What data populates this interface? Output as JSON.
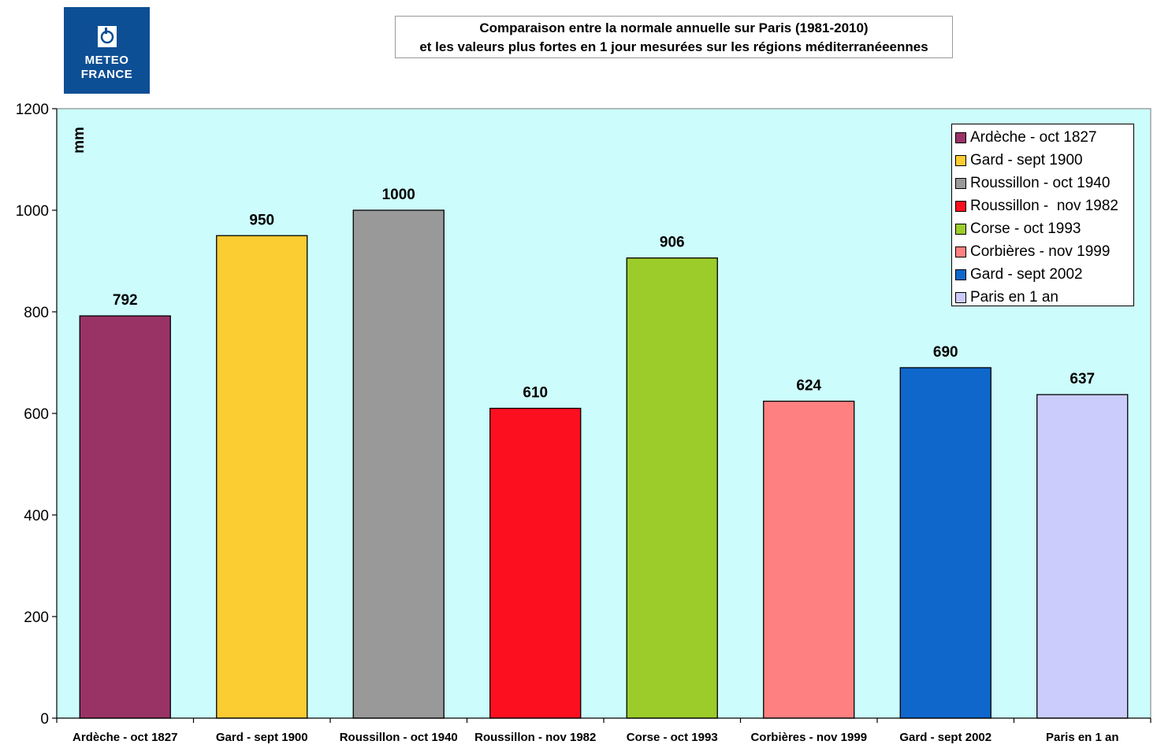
{
  "logo": {
    "line1": "METEO",
    "line2": "FRANCE",
    "color": "#0d4f94"
  },
  "title": {
    "line1": "Comparaison entre la normale annuelle sur Paris (1981-2010)",
    "line2": "et les valeurs plus fortes en 1 jour mesurées sur les régions méditerranéeennes"
  },
  "chart_data": {
    "type": "bar",
    "ylabel": "mm",
    "ylim": [
      0,
      1200
    ],
    "yticks": [
      0,
      200,
      400,
      600,
      800,
      1000,
      1200
    ],
    "plot_background": "#ccfcfc",
    "grid": false,
    "legend_position": "top-right",
    "categories": [
      "Ardèche - oct 1827",
      "Gard - sept 1900",
      "Roussillon - oct 1940",
      "Roussillon -  nov 1982",
      "Corse - oct 1993",
      "Corbières - nov 1999",
      "Gard - sept 2002",
      "Paris en 1 an"
    ],
    "values": [
      792,
      950,
      1000,
      610,
      906,
      624,
      690,
      637
    ],
    "data_labels": [
      "792",
      "950",
      "1000",
      "610",
      "906",
      "624",
      "690",
      "637"
    ],
    "colors": [
      "#993366",
      "#fccc33",
      "#999999",
      "#fc101f",
      "#9ccc2a",
      "#ff8080",
      "#0f67cc",
      "#ccccfc"
    ],
    "legend": [
      "Ardèche - oct 1827",
      "Gard - sept 1900",
      "Roussillon - oct 1940",
      "Roussillon -  nov 1982",
      "Corse - oct 1993",
      "Corbières - nov 1999",
      "Gard - sept 2002",
      "Paris en 1 an"
    ]
  }
}
